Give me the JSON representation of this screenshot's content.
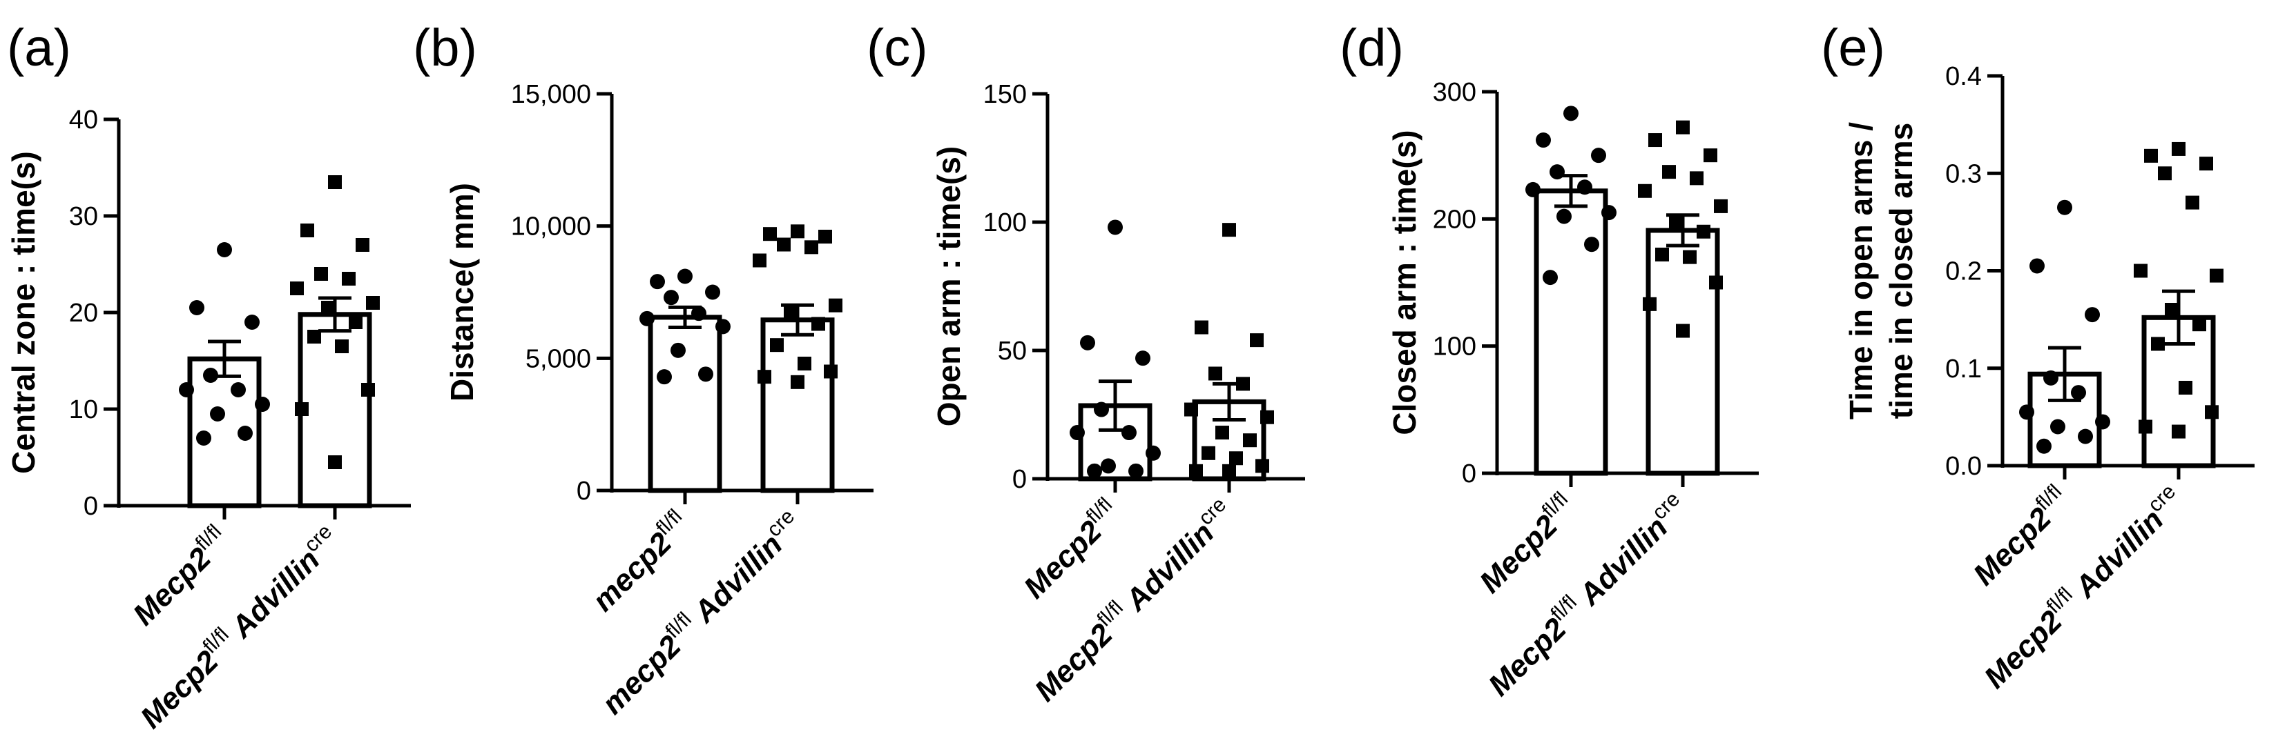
{
  "chart_data": [
    {
      "type": "bar",
      "panel": "(a)",
      "ylabel": "Central zone : time(s)",
      "ylim": [
        0,
        40
      ],
      "yticks": [
        0,
        10,
        20,
        30,
        40
      ],
      "ytick_labels": [
        "0",
        "10",
        "20",
        "30",
        "40"
      ],
      "categories": [
        {
          "base": "Mecp2",
          "sup": "fl/fl",
          "tail": "",
          "tail_sup": ""
        },
        {
          "base": "Mecp2",
          "sup": "fl/fl",
          "tail": " Advillin",
          "tail_sup": "cre"
        }
      ],
      "values": [
        15.2,
        19.8
      ],
      "errors": [
        1.8,
        1.7
      ],
      "points": [
        [
          26.5,
          20.5,
          19.0,
          13.5,
          12.0,
          12.0,
          10.5,
          9.5,
          7.5,
          7.0
        ],
        [
          33.5,
          28.5,
          27.0,
          24.0,
          23.5,
          22.5,
          21.0,
          20.5,
          19.0,
          17.5,
          16.5,
          12.0,
          10.0,
          4.5
        ]
      ]
    },
    {
      "type": "bar",
      "panel": "(b)",
      "ylabel": "Distance( mm)",
      "ylim": [
        0,
        15000
      ],
      "yticks": [
        0,
        5000,
        10000,
        15000
      ],
      "ytick_labels": [
        "0",
        "5,000",
        "10,000",
        "15,000"
      ],
      "categories": [
        {
          "base": "mecp2",
          "sup": "fl/fl",
          "tail": "",
          "tail_sup": ""
        },
        {
          "base": "mecp2",
          "sup": "fl/fl",
          "tail": " Advillin",
          "tail_sup": "cre"
        }
      ],
      "values": [
        6550,
        6450
      ],
      "errors": [
        380,
        560
      ],
      "points": [
        [
          8100,
          7900,
          7500,
          7300,
          6700,
          6500,
          6200,
          5300,
          4400,
          4300
        ],
        [
          9800,
          9700,
          9600,
          9300,
          9200,
          8700,
          7000,
          6700,
          6300,
          5500,
          4800,
          4500,
          4300,
          4100
        ]
      ]
    },
    {
      "type": "bar",
      "panel": "(c)",
      "ylabel": "Open arm : time(s)",
      "ylim": [
        0,
        150
      ],
      "yticks": [
        0,
        50,
        100,
        150
      ],
      "ytick_labels": [
        "0",
        "50",
        "100",
        "150"
      ],
      "categories": [
        {
          "base": "Mecp2",
          "sup": "fl/fl",
          "tail": "",
          "tail_sup": ""
        },
        {
          "base": "Mecp2",
          "sup": "fl/fl",
          "tail": " Advillin",
          "tail_sup": "cre"
        }
      ],
      "values": [
        28.5,
        30.0
      ],
      "errors": [
        9.5,
        7.0
      ],
      "points": [
        [
          98,
          53,
          47,
          27,
          18,
          18,
          10,
          5,
          3,
          3
        ],
        [
          97,
          59,
          54,
          41,
          37,
          27,
          24,
          18,
          15,
          10,
          8,
          5,
          3,
          3
        ]
      ]
    },
    {
      "type": "bar",
      "panel": "(d)",
      "ylabel": "Closed arm : time(s)",
      "ylim": [
        0,
        300
      ],
      "yticks": [
        0,
        100,
        200,
        300
      ],
      "ytick_labels": [
        "0",
        "100",
        "200",
        "300"
      ],
      "categories": [
        {
          "base": "Mecp2",
          "sup": "fl/fl",
          "tail": "",
          "tail_sup": ""
        },
        {
          "base": "Mecp2",
          "sup": "fl/fl",
          "tail": " Advillin",
          "tail_sup": "cre"
        }
      ],
      "values": [
        222,
        191
      ],
      "errors": [
        12,
        12
      ],
      "points": [
        [
          283,
          262,
          250,
          237,
          225,
          223,
          205,
          202,
          180,
          154
        ],
        [
          272,
          262,
          250,
          237,
          232,
          222,
          210,
          198,
          190,
          172,
          170,
          150,
          133,
          112
        ]
      ]
    },
    {
      "type": "bar",
      "panel": "(e)",
      "ylabel": [
        "Time in open arms /",
        "time in closed arms"
      ],
      "ylim": [
        0,
        0.4
      ],
      "yticks": [
        0,
        0.1,
        0.2,
        0.3,
        0.4
      ],
      "ytick_labels": [
        "0.0",
        "0.1",
        "0.2",
        "0.3",
        "0.4"
      ],
      "categories": [
        {
          "base": "Mecp2",
          "sup": "fl/fl",
          "tail": "",
          "tail_sup": ""
        },
        {
          "base": "Mecp2",
          "sup": "fl/fl",
          "tail": " Advillin",
          "tail_sup": "cre"
        }
      ],
      "values": [
        0.094,
        0.152
      ],
      "errors": [
        0.027,
        0.027
      ],
      "points": [
        [
          0.265,
          0.205,
          0.155,
          0.09,
          0.075,
          0.055,
          0.045,
          0.04,
          0.03,
          0.02
        ],
        [
          0.325,
          0.318,
          0.31,
          0.3,
          0.27,
          0.2,
          0.195,
          0.16,
          0.145,
          0.125,
          0.08,
          0.055,
          0.04,
          0.035
        ]
      ]
    }
  ]
}
